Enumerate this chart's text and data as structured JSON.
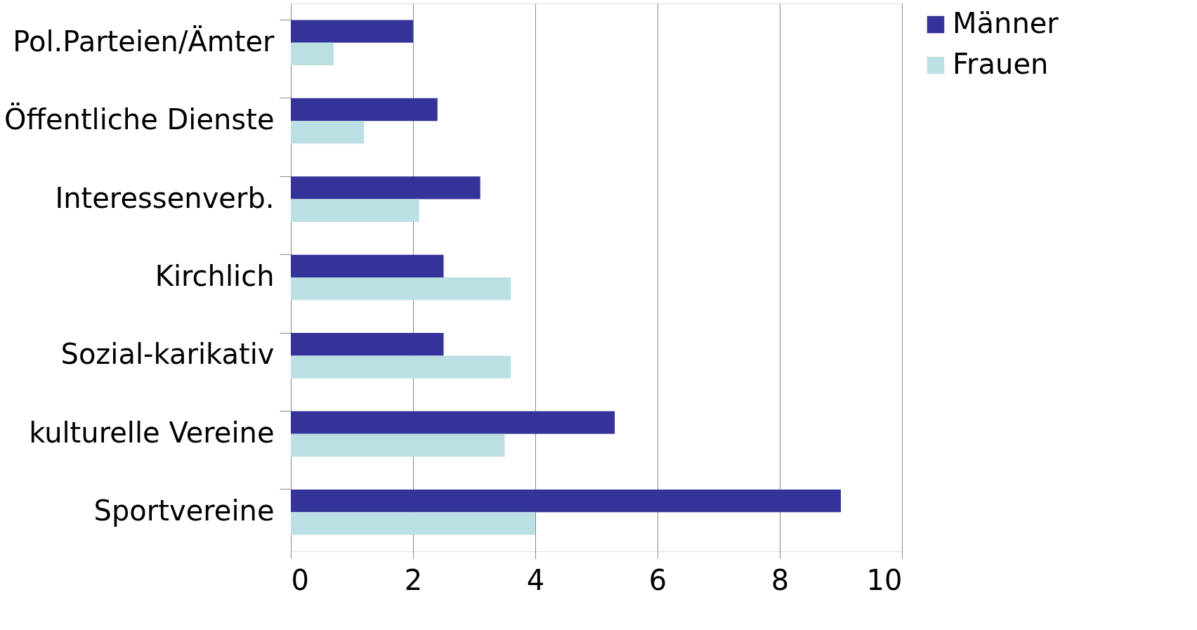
{
  "chart_data": {
    "type": "bar",
    "orientation": "horizontal",
    "categories": [
      "Pol.Parteien/Ämter",
      "Öffentliche Dienste",
      "Interessenverb.",
      "Kirchlich",
      "Sozial-karikativ",
      "kulturelle Vereine",
      "Sportvereine"
    ],
    "series": [
      {
        "name": "Männer",
        "color": "#333399",
        "values": [
          2.0,
          2.4,
          3.1,
          2.5,
          2.5,
          5.3,
          9.0
        ]
      },
      {
        "name": "Frauen",
        "color": "#bbe0e3",
        "values": [
          0.7,
          1.2,
          2.1,
          3.6,
          3.6,
          3.5,
          4.0
        ]
      }
    ],
    "xlim": [
      0,
      10
    ],
    "xticks": [
      0,
      2,
      4,
      6,
      8,
      10
    ],
    "grid": "x",
    "legend": "right"
  }
}
